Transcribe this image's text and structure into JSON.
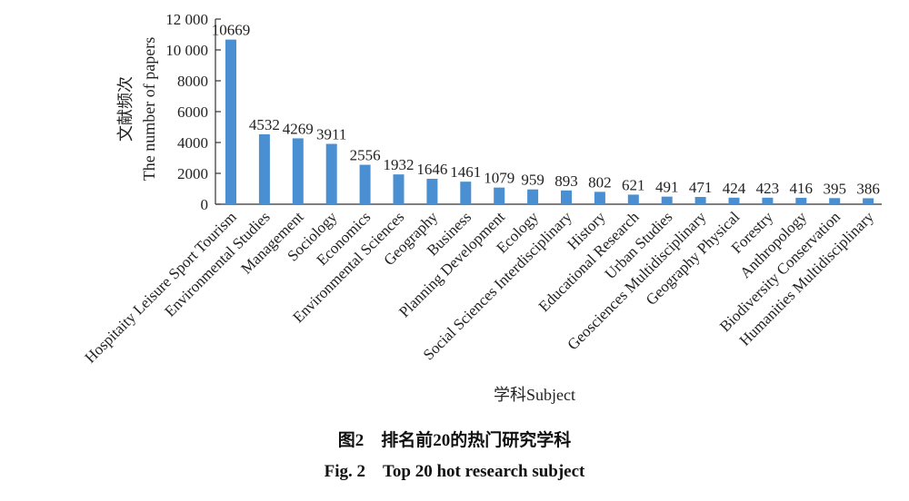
{
  "chart_data": {
    "type": "bar",
    "title": "",
    "xlabel": "学科Subject",
    "ylabel": "The number of papers",
    "ylabel_zh": "文献频次",
    "ylim": [
      0,
      12000
    ],
    "yticks": [
      0,
      2000,
      4000,
      6000,
      8000,
      10000,
      12000
    ],
    "ytick_labels": [
      "0",
      "2000",
      "4000",
      "6000",
      "8000",
      "10 000",
      "12 000"
    ],
    "grid": false,
    "bar_color": "#4A8FD1",
    "categories": [
      "Hospitaity Leisure Sport Tourism",
      "Environmental Studies",
      "Management",
      "Sociology",
      "Economics",
      "Environmental Sciences",
      "Geography",
      "Business",
      "Planning Development",
      "Ecology",
      "Social Sciences Interdisciplinary",
      "History",
      "Educational Research",
      "Urban Studies",
      "Geosciences Multidisciplinary",
      "Geography Physical",
      "Forestry",
      "Anthropology",
      "Biodiversity Conservation",
      "Humanities Multidisciplinary"
    ],
    "values": [
      10669,
      4532,
      4269,
      3911,
      2556,
      1932,
      1646,
      1461,
      1079,
      959,
      893,
      802,
      621,
      491,
      471,
      424,
      423,
      416,
      395,
      386
    ]
  },
  "caption": {
    "zh": "图2　排名前20的热门研究学科",
    "en": "Fig. 2　Top 20 hot research subject"
  }
}
